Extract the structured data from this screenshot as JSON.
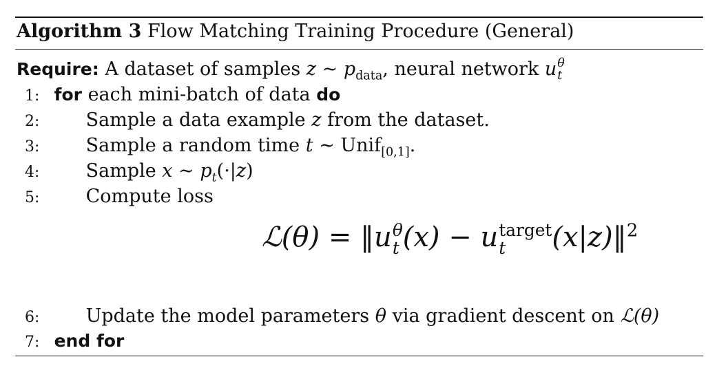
{
  "caption": {
    "label": "Algorithm 3",
    "title": "Flow Matching Training Procedure (General)"
  },
  "require": {
    "keyword": "Require:",
    "text_a": "A dataset of samples",
    "var_z": "z",
    "sim": "∼",
    "p": "p",
    "p_sub": "data",
    "comma": ", neural network",
    "u": "u",
    "u_sup": "θ",
    "u_sub": "t"
  },
  "steps": [
    {
      "num": "1:",
      "kw_for": "for",
      "text": "each mini-batch of data",
      "kw_do": "do"
    },
    {
      "num": "2:",
      "text_a": "Sample a data example",
      "var": "z",
      "text_b": "from the dataset."
    },
    {
      "num": "3:",
      "text_a": "Sample a random time",
      "var": "t",
      "sim": "∼",
      "unif": "Unif",
      "unif_sub": "[0,1]",
      "end": "."
    },
    {
      "num": "4:",
      "text_a": "Sample",
      "var": "x",
      "sim": "∼",
      "p": "p",
      "p_sub": "t",
      "args": "(·|",
      "argz": "z",
      "close": ")"
    },
    {
      "num": "5:",
      "text": "Compute loss"
    },
    {
      "num": "6:",
      "text_a": "Update the model parameters",
      "var": "θ",
      "text_b": "via gradient descent on",
      "loss": "ℒ(θ)"
    },
    {
      "num": "7:",
      "kw_end": "end for"
    }
  ],
  "equation": {
    "lhs": "ℒ(θ) = ‖",
    "u": "u",
    "u_sup": "θ",
    "u_sub": "t",
    "mid": "(x) − ",
    "u2": "u",
    "u2_sup": "target",
    "u2_sub": "t",
    "rhs": "(x|z)‖",
    "power": "2"
  }
}
